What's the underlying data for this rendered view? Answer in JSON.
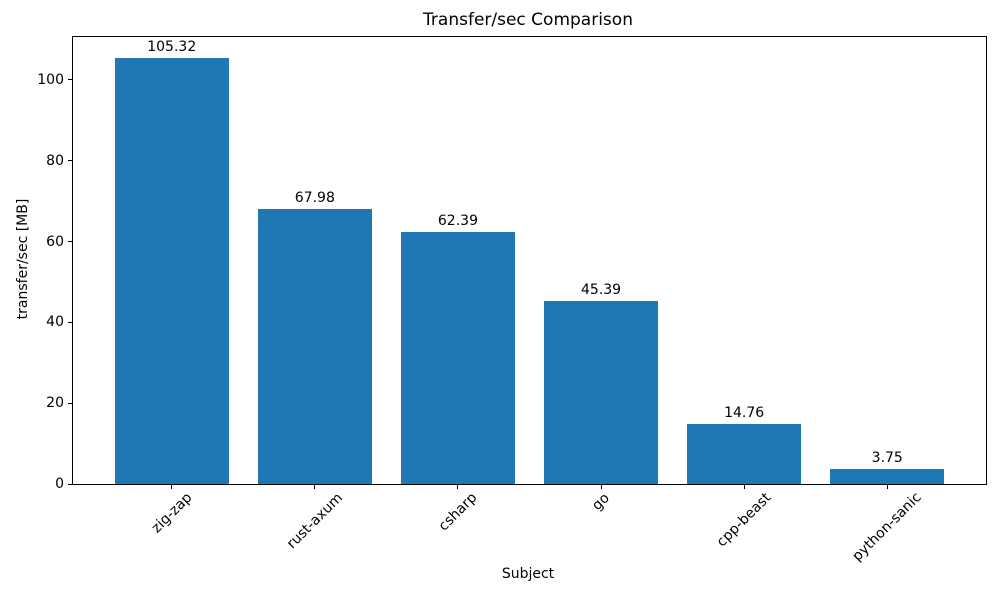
{
  "chart_data": {
    "type": "bar",
    "title": "Transfer/sec Comparison",
    "xlabel": "Subject",
    "ylabel": "transfer/sec [MB]",
    "categories": [
      "zig-zap",
      "rust-axum",
      "csharp",
      "go",
      "cpp-beast",
      "python-sanic"
    ],
    "values": [
      105.32,
      67.98,
      62.39,
      45.39,
      14.76,
      3.75
    ],
    "bar_labels": [
      "105.32",
      "67.98",
      "62.39",
      "45.39",
      "14.76",
      "3.75"
    ],
    "yticks": [
      0,
      20,
      40,
      60,
      80,
      100
    ],
    "ytick_labels": [
      "0",
      "20",
      "40",
      "60",
      "80",
      "100"
    ],
    "ylim": [
      0,
      110.6
    ],
    "xlim": [
      -0.69,
      5.69
    ],
    "bar_width": 0.8,
    "bar_color": "#1f77b4",
    "background_color": "#ffffff",
    "grid": false,
    "legend": null,
    "x_tick_rotation_deg": 45
  }
}
